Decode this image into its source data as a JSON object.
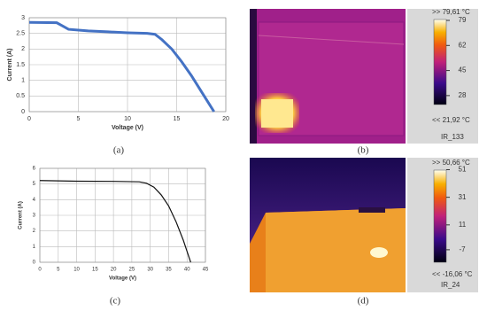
{
  "chart_data": [
    {
      "type": "line",
      "xlabel": "Voltage (V)",
      "ylabel": "Current (A)",
      "xlim": [
        0,
        20
      ],
      "ylim": [
        0,
        3
      ],
      "xticks": [
        0,
        5,
        10,
        15,
        20
      ],
      "yticks": [
        0,
        0.5,
        1,
        1.5,
        2,
        2.5,
        3
      ],
      "grid": true,
      "x": [
        0,
        2.8,
        3.5,
        4,
        6,
        8,
        10,
        12,
        12.8,
        13.5,
        14.5,
        15.5,
        16.5,
        17.5,
        18.3,
        18.8
      ],
      "series": [
        {
          "color": "#4472c4",
          "values": [
            2.85,
            2.84,
            2.72,
            2.63,
            2.58,
            2.55,
            2.52,
            2.5,
            2.47,
            2.3,
            2.0,
            1.6,
            1.15,
            0.65,
            0.25,
            0
          ]
        }
      ]
    },
    {
      "type": "line",
      "xlabel": "Voltage (V)",
      "ylabel": "Current (A)",
      "xlim": [
        0,
        45
      ],
      "ylim": [
        0,
        6
      ],
      "xticks": [
        0,
        5,
        10,
        15,
        20,
        25,
        30,
        35,
        40,
        45
      ],
      "yticks": [
        0,
        1,
        2,
        3,
        4,
        5,
        6
      ],
      "grid": true,
      "x": [
        0,
        10,
        20,
        27,
        29,
        31,
        33,
        35,
        37,
        39,
        40,
        41
      ],
      "series": [
        {
          "color": "#111111",
          "values": [
            5.22,
            5.18,
            5.17,
            5.14,
            5.05,
            4.8,
            4.3,
            3.6,
            2.6,
            1.4,
            0.7,
            0
          ]
        }
      ]
    }
  ],
  "thermal": [
    {
      "max_label": ">> 79,61 °C",
      "min_label": "<< 21,92 °C",
      "id": "IR_133",
      "range": [
        21.92,
        79.61
      ],
      "ticks": [
        79,
        62,
        45,
        28
      ]
    },
    {
      "max_label": ">> 50,66 °C",
      "min_label": "<< -16,06 °C",
      "id": "IR_24",
      "range": [
        -16.06,
        50.66
      ],
      "ticks": [
        51,
        31,
        11,
        -7
      ]
    }
  ],
  "panels": [
    "(a)",
    "(b)",
    "(c)",
    "(d)"
  ]
}
